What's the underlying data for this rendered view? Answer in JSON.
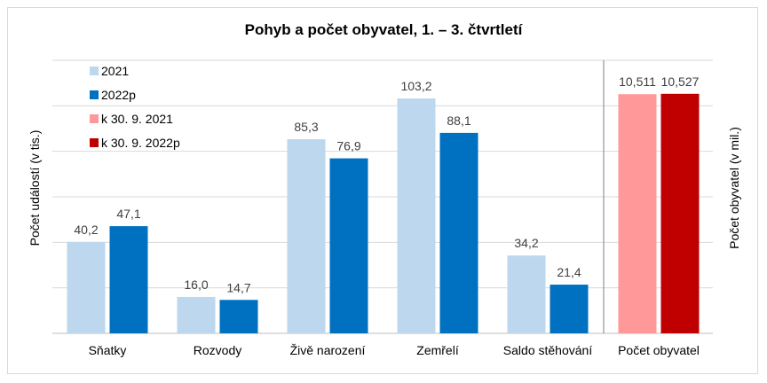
{
  "chart_data": {
    "type": "bar",
    "title": "Pohyb a počet obyvatel, 1. – 3. čtvrtletí",
    "ylabel_left": "Počet událostí (v tis.)",
    "ylabel_right": "Počet obyvatel (v mil.)",
    "left_panel": {
      "categories": [
        "Sňatky",
        "Rozvody",
        "Živě narození",
        "Zemřelí",
        "Saldo stěhování"
      ],
      "ylim": [
        0,
        120
      ],
      "series": [
        {
          "name": "2021",
          "color": "#bdd7ee",
          "values": [
            40.2,
            16.0,
            85.3,
            103.2,
            34.2
          ],
          "labels": [
            "40,2",
            "16,0",
            "85,3",
            "103,2",
            "34,2"
          ]
        },
        {
          "name": "2022p",
          "color": "#0070c0",
          "values": [
            47.1,
            14.7,
            76.9,
            88.1,
            21.4
          ],
          "labels": [
            "47,1",
            "14,7",
            "76,9",
            "88,1",
            "21,4"
          ]
        }
      ]
    },
    "right_panel": {
      "categories": [
        "Počet obyvatel"
      ],
      "ylim": [
        0,
        12
      ],
      "series": [
        {
          "name": "k 30. 9. 2021",
          "color": "#ff9999",
          "values": [
            10.511
          ],
          "labels": [
            "10,511"
          ]
        },
        {
          "name": "k 30. 9. 2022p",
          "color": "#c00000",
          "values": [
            10.527
          ],
          "labels": [
            "10,527"
          ]
        }
      ]
    },
    "grid": true,
    "legend_position": "top-left"
  }
}
